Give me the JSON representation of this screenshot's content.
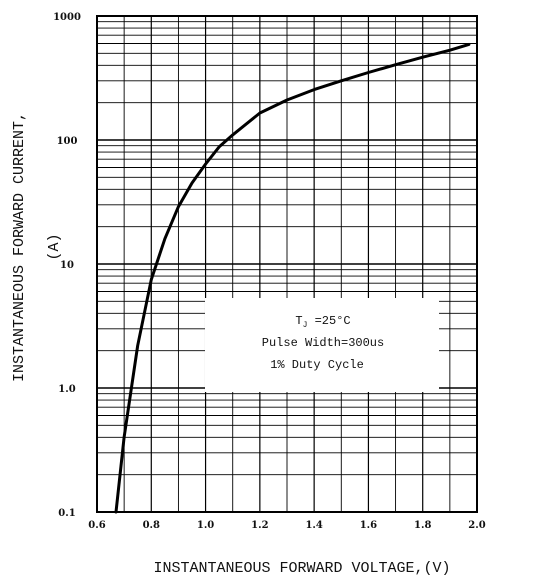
{
  "chart_data": {
    "type": "line",
    "xlabel": "INSTANTANEOUS  FORWARD  VOLTAGE,(V)",
    "ylabel_line1": "INSTANTANEOUS  FORWARD  CURRENT,",
    "ylabel_line2": "(A)",
    "xlim": [
      0.6,
      2.0
    ],
    "ylim": [
      0.1,
      1000
    ],
    "y_scale": "log",
    "grid": true,
    "x_ticks": [
      "0.6",
      "0.8",
      "1.0",
      "1.2",
      "1.4",
      "1.6",
      "1.8",
      "2.0"
    ],
    "y_ticks": [
      "0.1",
      "1.0",
      "10",
      "100",
      "1000"
    ],
    "annotation": {
      "line1": "T",
      "line1_sub": "J",
      "line1_rest": " =25°C",
      "line2": "Pulse Width=300us",
      "line3": "1% Duty Cycle"
    },
    "series": [
      {
        "x": [
          0.67,
          0.7,
          0.75,
          0.8,
          0.85,
          0.9,
          0.95,
          1.0,
          1.05,
          1.1,
          1.2,
          1.3,
          1.4,
          1.5,
          1.6,
          1.7,
          1.8,
          1.9,
          1.97
        ],
        "y": [
          0.1,
          0.4,
          2.2,
          7.5,
          16,
          29,
          45,
          64,
          88,
          110,
          165,
          210,
          255,
          300,
          350,
          405,
          465,
          530,
          590
        ]
      }
    ]
  }
}
